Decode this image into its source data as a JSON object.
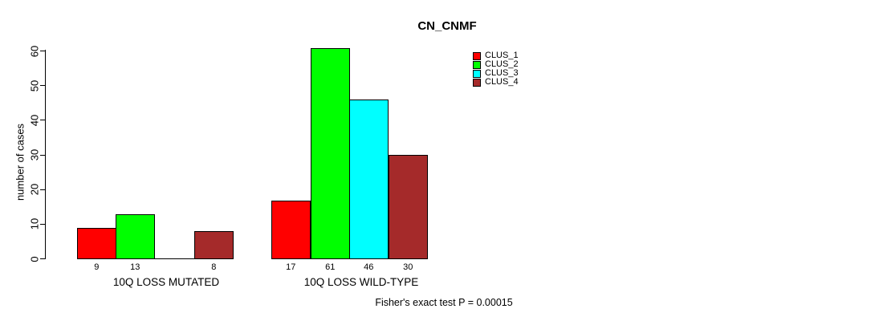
{
  "chart_data": {
    "type": "bar",
    "title": "CN_CNMF",
    "ylabel": "number of cases",
    "xlabel": "",
    "ylim": [
      0,
      60
    ],
    "yticks": [
      0,
      10,
      20,
      30,
      40,
      50,
      60
    ],
    "grid": false,
    "legend_position": "top-right",
    "categories": [
      "10Q LOSS MUTATED",
      "10Q LOSS WILD-TYPE"
    ],
    "series": [
      {
        "name": "CLUS_1",
        "color": "#ff0000",
        "values": [
          9,
          17
        ]
      },
      {
        "name": "CLUS_2",
        "color": "#00ff00",
        "values": [
          13,
          61
        ]
      },
      {
        "name": "CLUS_3",
        "color": "#00ffff",
        "values": [
          0,
          46
        ]
      },
      {
        "name": "CLUS_4",
        "color": "#a52a2a",
        "values": [
          8,
          30
        ]
      }
    ],
    "bar_value_labels": [
      [
        "9",
        "13",
        "",
        "8"
      ],
      [
        "17",
        "61",
        "46",
        "30"
      ]
    ],
    "legend": [
      {
        "label": "CLUS_1",
        "color": "#ff0000"
      },
      {
        "label": "CLUS_2",
        "color": "#00ff00"
      },
      {
        "label": "CLUS_3",
        "color": "#00ffff"
      },
      {
        "label": "CLUS_4",
        "color": "#a52a2a"
      }
    ],
    "annotation": "Fisher's exact test P = 0.00015",
    "axis_color": "#000000",
    "background_color": "#ffffff"
  }
}
